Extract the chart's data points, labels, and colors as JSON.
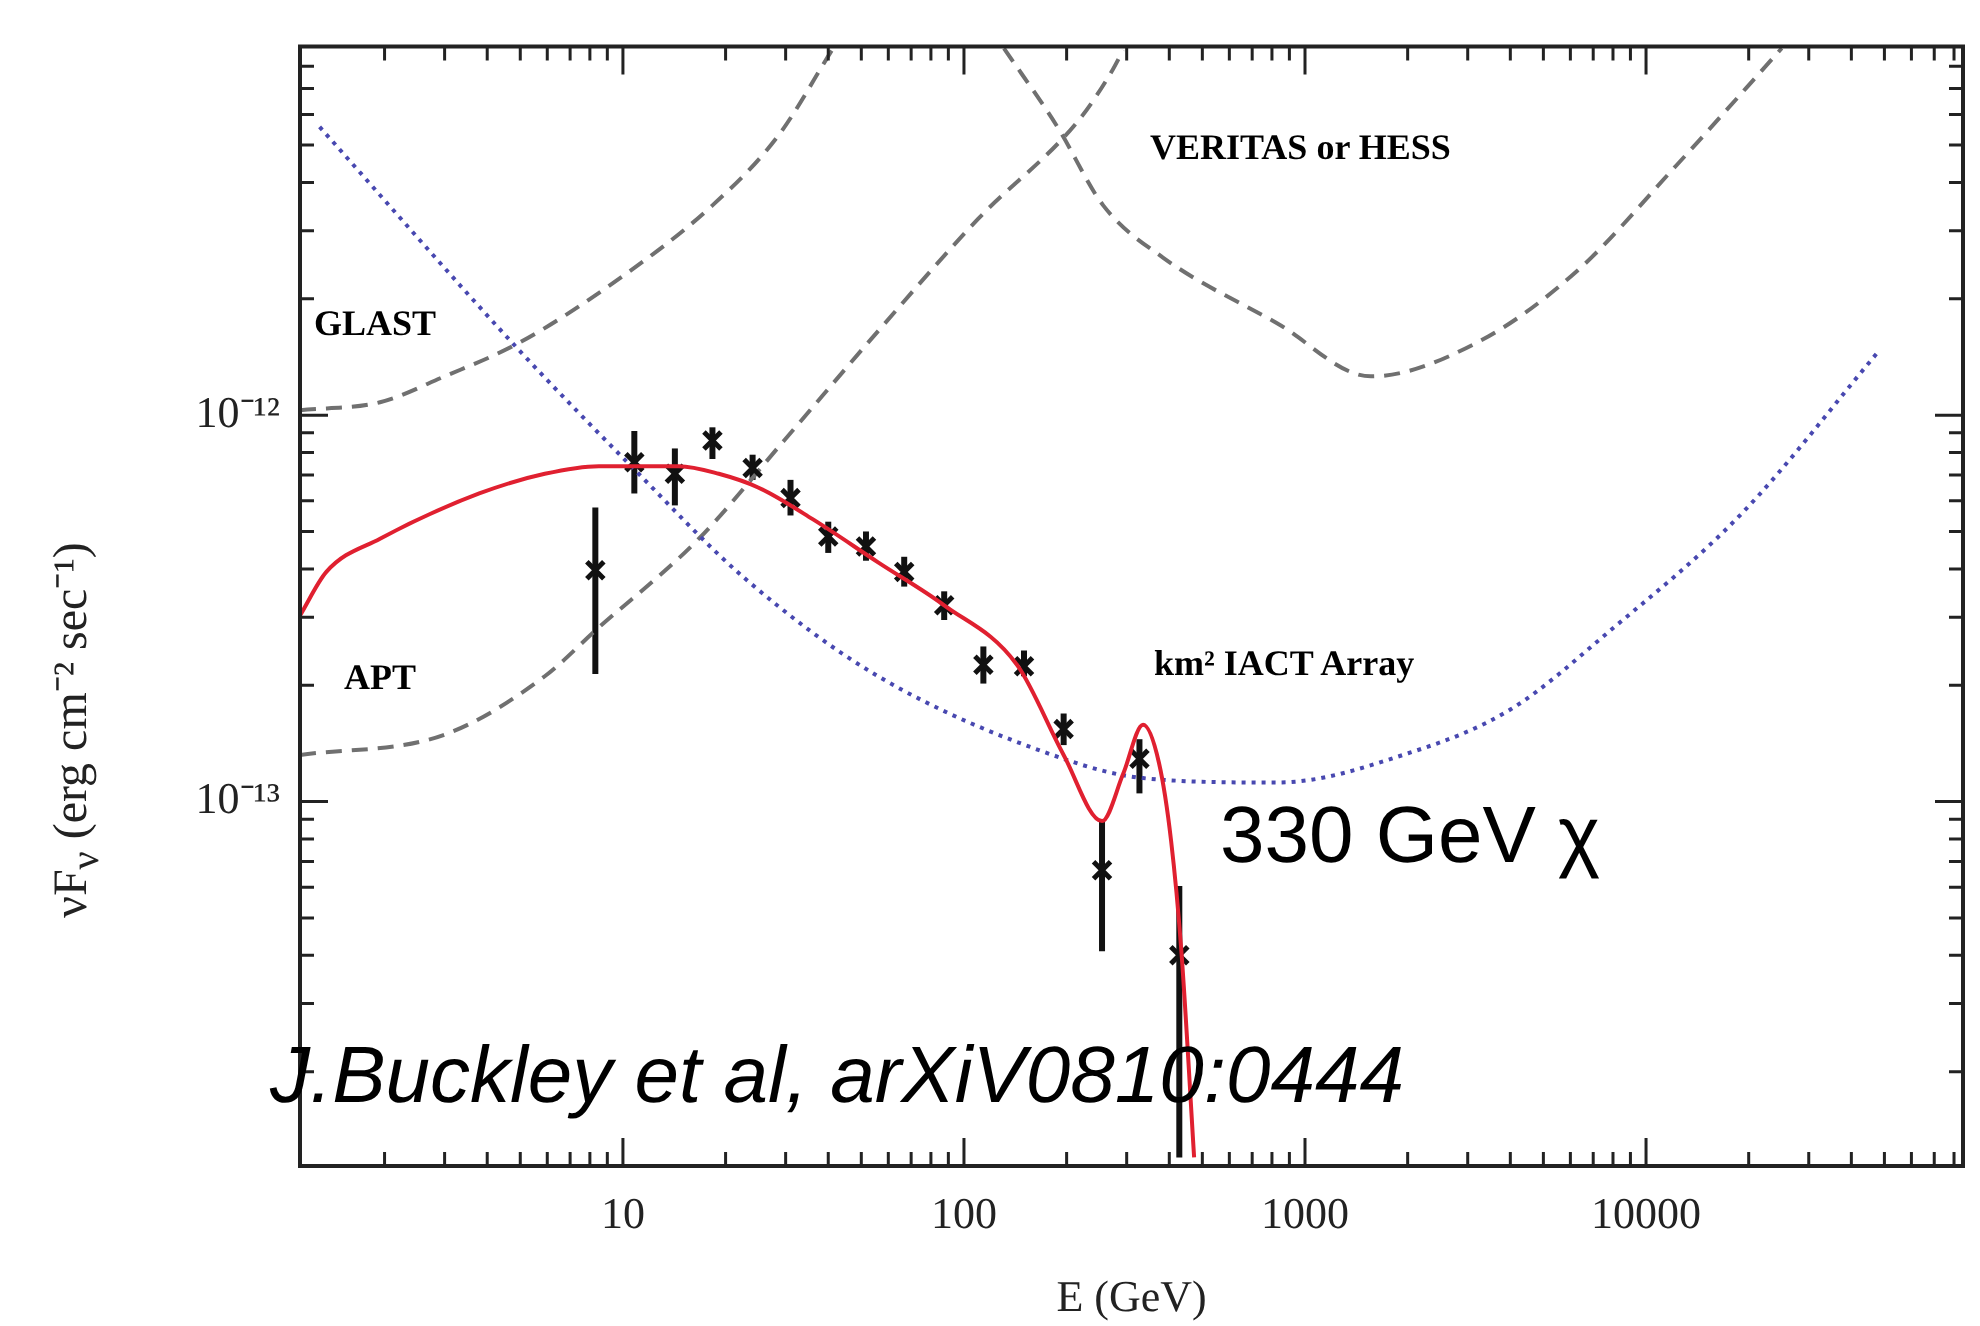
{
  "chart_data": {
    "type": "line",
    "xlabel": "E (GeV)",
    "ylabel": "νF$_{ν}$ (erg cm⁻² sec⁻¹)",
    "log": "xy",
    "grid": false,
    "legend": false,
    "xlim": [
      1.13,
      85000
    ],
    "ylim": [
      1.14e-14,
      9e-12
    ],
    "xticks": [
      {
        "value": 2,
        "label": null
      },
      {
        "value": 3,
        "label": null
      },
      {
        "value": 4,
        "label": null
      },
      {
        "value": 5,
        "label": null
      },
      {
        "value": 6,
        "label": null
      },
      {
        "value": 7,
        "label": null
      },
      {
        "value": 8,
        "label": null
      },
      {
        "value": 9,
        "label": null
      },
      10,
      {
        "value": 20,
        "label": null
      },
      {
        "value": 30,
        "label": null
      },
      {
        "value": 40,
        "label": null
      },
      {
        "value": 50,
        "label": null
      },
      {
        "value": 60,
        "label": null
      },
      {
        "value": 70,
        "label": null
      },
      {
        "value": 80,
        "label": null
      },
      {
        "value": 90,
        "label": null
      },
      100,
      {
        "value": 200,
        "label": null
      },
      {
        "value": 300,
        "label": null
      },
      {
        "value": 400,
        "label": null
      },
      {
        "value": 500,
        "label": null
      },
      {
        "value": 600,
        "label": null
      },
      {
        "value": 700,
        "label": null
      },
      {
        "value": 800,
        "label": null
      },
      {
        "value": 900,
        "label": null
      },
      1000,
      {
        "value": 2000,
        "label": null
      },
      {
        "value": 3000,
        "label": null
      },
      {
        "value": 4000,
        "label": null
      },
      {
        "value": 5000,
        "label": null
      },
      {
        "value": 6000,
        "label": null
      },
      {
        "value": 7000,
        "label": null
      },
      {
        "value": 8000,
        "label": null
      },
      {
        "value": 9000,
        "label": null
      },
      10000,
      {
        "value": 20000,
        "label": null
      },
      {
        "value": 30000,
        "label": null
      },
      {
        "value": 40000,
        "label": null
      },
      {
        "value": 50000,
        "label": null
      },
      {
        "value": 60000,
        "label": null
      },
      {
        "value": 70000,
        "label": null
      },
      {
        "value": 80000,
        "label": null
      }
    ],
    "yticks": [
      {
        "value": 2e-14,
        "label": null
      },
      {
        "value": 3e-14,
        "label": null
      },
      {
        "value": 4e-14,
        "label": null
      },
      {
        "value": 5e-14,
        "label": null
      },
      {
        "value": 6e-14,
        "label": null
      },
      {
        "value": 7e-14,
        "label": null
      },
      {
        "value": 8e-14,
        "label": null
      },
      {
        "value": 9e-14,
        "label": null
      },
      {
        "value": 1e-13,
        "label": "10⁻¹³"
      },
      {
        "value": 2e-13,
        "label": null
      },
      {
        "value": 3e-13,
        "label": null
      },
      {
        "value": 4e-13,
        "label": null
      },
      {
        "value": 5e-13,
        "label": null
      },
      {
        "value": 6e-13,
        "label": null
      },
      {
        "value": 7e-13,
        "label": null
      },
      {
        "value": 8e-13,
        "label": null
      },
      {
        "value": 9e-13,
        "label": null
      },
      {
        "value": 1e-12,
        "label": "10⁻¹²"
      },
      {
        "value": 2e-12,
        "label": null
      },
      {
        "value": 3e-12,
        "label": null
      },
      {
        "value": 4e-12,
        "label": null
      },
      {
        "value": 5e-12,
        "label": null
      },
      {
        "value": 6e-12,
        "label": null
      },
      {
        "value": 7e-12,
        "label": null
      },
      {
        "value": 8e-12,
        "label": null
      },
      {
        "value": 9e-12,
        "label": null
      }
    ],
    "series": [
      {
        "color": "#e02030",
        "line_style": "solid",
        "x": [
          1.13,
          1.35,
          1.94,
          3.79,
          5.9,
          8.5,
          14.6,
          19.1,
          25,
          36,
          56,
          87.5,
          143,
          196,
          254,
          293,
          335,
          373,
          405,
          434,
          473
        ],
        "values": [
          3.03e-13,
          3.93e-13,
          4.79e-13,
          6.27e-13,
          7.05e-13,
          7.38e-13,
          7.38e-13,
          7.05e-13,
          6.49e-13,
          5.38e-13,
          4.16e-13,
          3.22e-13,
          2.26e-13,
          1.32e-13,
          8.9e-14,
          1.18e-13,
          1.58e-13,
          1.26e-13,
          7.9e-14,
          4.1e-14,
          1.2e-14
        ]
      },
      {
        "type": "scatter",
        "color": "#111111",
        "marker": "cross",
        "x": [
          8.3,
          10.8,
          14.2,
          18.3,
          24,
          31,
          40,
          51.6,
          66.8,
          87.5,
          114,
          150,
          196,
          254,
          327,
          428
        ],
        "values": [
          3.97e-13,
          7.55e-13,
          7.05e-13,
          8.6e-13,
          7.3e-13,
          6.1e-13,
          4.85e-13,
          4.57e-13,
          3.93e-13,
          3.22e-13,
          2.26e-13,
          2.24e-13,
          1.54e-13,
          6.64e-14,
          1.29e-13,
          4e-14
        ],
        "errors": [
          [
            2.14e-13,
            5.77e-13
          ],
          [
            6.27e-13,
            9.1e-13
          ],
          [
            5.84e-13,
            8.2e-13
          ],
          [
            7.7e-13,
            9.3e-13
          ],
          [
            6.8e-13,
            7.9e-13
          ],
          [
            5.5e-13,
            6.8e-13
          ],
          [
            4.4e-13,
            5.3e-13
          ],
          [
            4.2e-13,
            5e-13
          ],
          [
            3.6e-13,
            4.3e-13
          ],
          [
            2.95e-13,
            3.5e-13
          ],
          [
            2.02e-13,
            2.52e-13
          ],
          [
            2.11e-13,
            2.46e-13
          ],
          [
            1.4e-13,
            1.69e-13
          ],
          [
            4.1e-14,
            8.9e-14
          ],
          [
            1.05e-13,
            1.45e-13
          ],
          [
            1.2e-14,
            6.05e-14
          ]
        ]
      },
      {
        "color": "#4848b0",
        "line_style": "dotted",
        "x": [
          1.29,
          4.97,
          10.7,
          22.7,
          56,
          196,
          335,
          828,
          2040,
          4000,
          7850,
          19100,
          48300
        ],
        "values": [
          5.57e-12,
          1.47e-12,
          7.3e-13,
          3.79e-13,
          2.11e-13,
          1.29e-13,
          1.15e-13,
          1.12e-13,
          1.34e-13,
          1.73e-13,
          2.77e-13,
          5.57e-13,
          1.47e-12
        ]
      },
      {
        "type": "line",
        "color": "#707070",
        "line_style": "dashed",
        "x": [
          1.13,
          1.94,
          3.0,
          4.97,
          9.3,
          18.3,
          28.6,
          41
        ],
        "values": [
          1.03e-12,
          1.08e-12,
          1.26e-12,
          1.54e-12,
          2.19e-12,
          3.49e-12,
          5.3e-12,
          8.8e-12
        ]
      },
      {
        "type": "line",
        "color": "#707070",
        "line_style": "dashed",
        "x": [
          1.13,
          3.0,
          5.9,
          8.3,
          16.7,
          29.7,
          56,
          110,
          216,
          270,
          293
        ],
        "values": [
          1.32e-13,
          1.49e-13,
          2.11e-13,
          2.77e-13,
          4.79e-13,
          8.6e-13,
          1.65e-12,
          3.22e-12,
          5.77e-12,
          7.7e-12,
          8.8e-12
        ]
      },
      {
        "type": "line",
        "color": "#707070",
        "line_style": "dashed",
        "x": [
          131,
          188,
          256,
          385,
          828,
          1560,
          3190,
          6240,
          12250,
          25000
        ],
        "values": [
          8.9e-12,
          5.57e-12,
          3.49e-12,
          2.55e-12,
          1.73e-12,
          1.26e-12,
          1.54e-12,
          2.35e-12,
          4.42e-12,
          8.9e-12
        ]
      }
    ],
    "annotations": [
      "GLAST",
      "APT",
      "VERITAS or HESS",
      "km² IACT Array",
      "330 GeV χ",
      "J.Buckley et al, arXiV0810:0444"
    ]
  }
}
